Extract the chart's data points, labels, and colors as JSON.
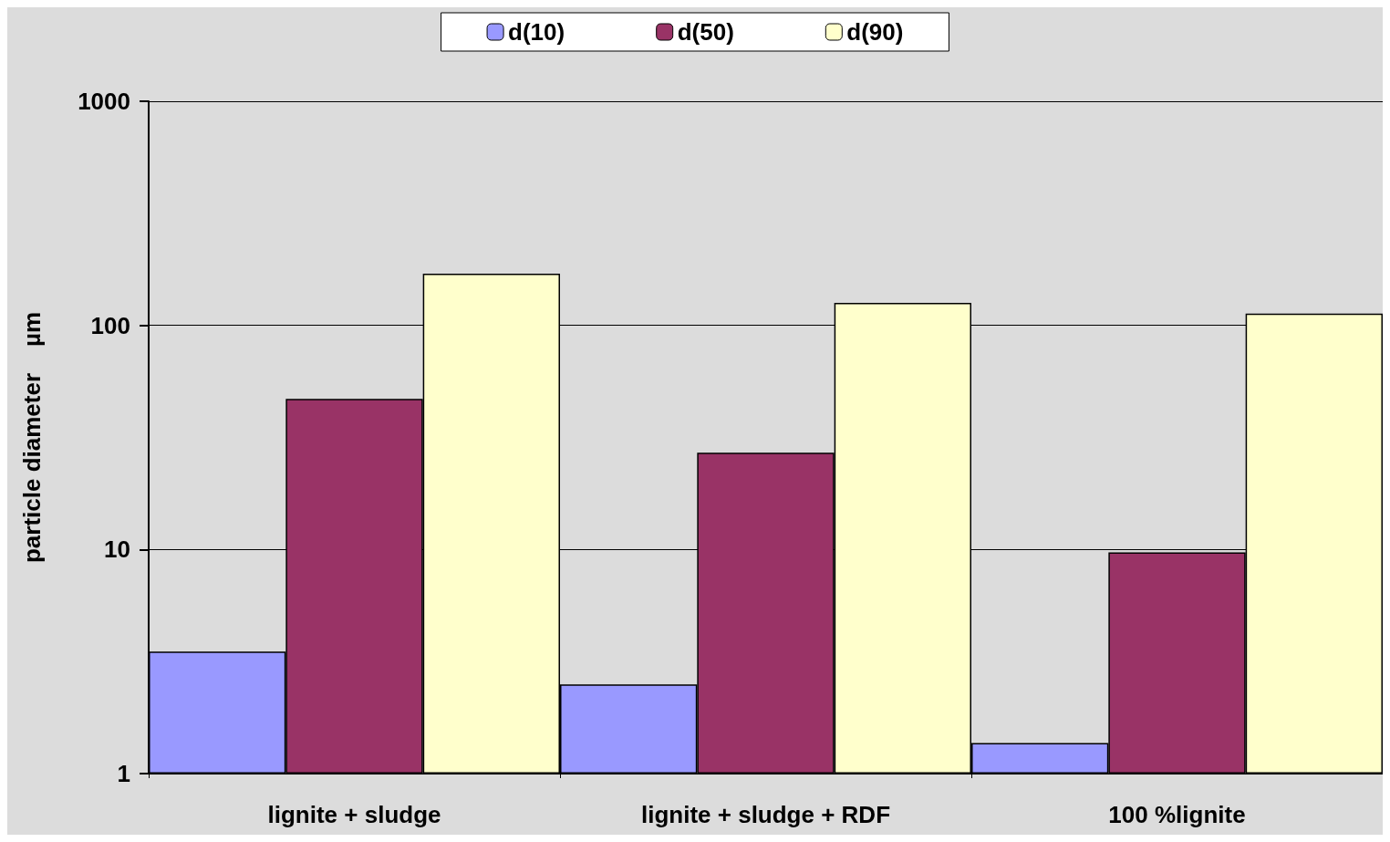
{
  "chart_data": {
    "type": "bar",
    "ylabel": "particle diameter    µm",
    "categories": [
      "lignite + sludge",
      "lignite + sludge + RDF",
      "100 %lignite"
    ],
    "series": [
      {
        "name": "d(10)",
        "color": "#9999ff",
        "values": [
          3.5,
          2.5,
          1.37
        ]
      },
      {
        "name": "d(50)",
        "color": "#993366",
        "values": [
          47,
          27,
          9.7
        ]
      },
      {
        "name": "d(90)",
        "color": "#ffffcc",
        "values": [
          170,
          126,
          113
        ]
      }
    ],
    "log": true,
    "ylim": [
      1,
      1000
    ],
    "yticks": [
      1,
      10,
      100,
      1000
    ],
    "grid": "y",
    "legend": "top"
  }
}
